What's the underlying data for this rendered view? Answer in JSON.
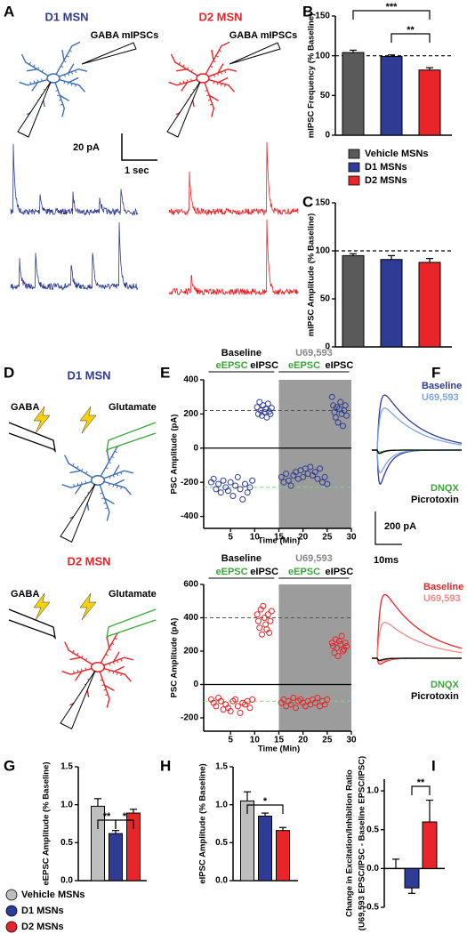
{
  "figure": {
    "labels": [
      "A",
      "B",
      "C",
      "D",
      "E",
      "F",
      "G",
      "H",
      "I"
    ],
    "panel_a": {
      "d1": "D1 MSN",
      "d2": "D2 MSN",
      "recording": "GABA mIPSCs",
      "scale_y": "20 pA",
      "scale_x": "1 sec"
    },
    "panel_d": {
      "d1": "D1 MSN",
      "d2": "D2 MSN",
      "gaba": "GABA",
      "glutamate": "Glutamate"
    },
    "panel_f": {
      "baseline": "Baseline",
      "drug": "U69,593",
      "dnqx": "DNQX",
      "picrotoxin": "Picrotoxin",
      "scale_y": "200 pA",
      "scale_x": "10ms"
    },
    "legend_square": [
      {
        "name": "Vehicle MSNs",
        "color": "#5a5a5a"
      },
      {
        "name": "D1 MSNs",
        "color": "#2e3c96"
      },
      {
        "name": "D2 MSNs",
        "color": "#e8262a"
      }
    ],
    "legend_circle": [
      {
        "name": "Vehicle MSNs",
        "color": "#bebebe"
      },
      {
        "name": "D1 MSNs",
        "color": "#2e3c96"
      },
      {
        "name": "D2 MSNs",
        "color": "#e8262a"
      }
    ]
  },
  "chart_data": [
    {
      "type": "bar",
      "ylabel": "mIPSC Frequency (% Baseline)",
      "values": [
        104,
        99,
        82
      ],
      "errors": [
        3,
        2,
        3
      ],
      "colors": [
        "#5a5a5a",
        "#2e3c96",
        "#e8262a"
      ],
      "ylim": [
        0,
        150
      ],
      "yticks": [
        0,
        50,
        100,
        150
      ],
      "ref_line": 100,
      "annotations": [
        "***",
        "**"
      ]
    },
    {
      "type": "bar",
      "ylabel": "mIPSC Amplitude (% Baseline)",
      "values": [
        95,
        91,
        88
      ],
      "errors": [
        2,
        4,
        4
      ],
      "colors": [
        "#5a5a5a",
        "#2e3c96",
        "#e8262a"
      ],
      "ylim": [
        0,
        150
      ],
      "yticks": [
        0,
        50,
        100,
        150
      ],
      "ref_line": 100,
      "annotations": []
    },
    {
      "type": "scatter",
      "ylabel": "PSC Amplitude (pA)",
      "xlabel": "Time (Min)",
      "phases": [
        "Baseline",
        "U69,593"
      ],
      "xlim": [
        0,
        30
      ],
      "xticks": [
        5,
        10,
        15,
        20,
        25,
        30
      ],
      "ylim": [
        -470,
        400
      ],
      "yticks": [
        -400,
        -200,
        0,
        200,
        400
      ],
      "shaded_x": [
        15,
        30
      ],
      "ref_lines": [
        {
          "value": 220,
          "color": "#555555"
        },
        {
          "value": -230,
          "color": "#7fd67f"
        }
      ],
      "series": [
        {
          "name": "eEPSC",
          "color": "#2e3c96",
          "x": [
            1,
            1.5,
            2,
            2.5,
            3,
            3.5,
            4,
            4.5,
            5,
            5.5,
            6,
            6.5,
            7,
            7.5,
            8,
            8.5,
            9,
            9.5
          ],
          "values": [
            -200,
            -180,
            -240,
            -210,
            -260,
            -190,
            -230,
            -250,
            -200,
            -280,
            -220,
            -170,
            -240,
            -300,
            -210,
            -260,
            -230,
            -190
          ]
        },
        {
          "name": "eIPSC",
          "color": "#2e3c96",
          "x": [
            10.5,
            10.75,
            11,
            11.25,
            11.5,
            11.75,
            12,
            12.25,
            12.5,
            12.75,
            13,
            13.25,
            13.5
          ],
          "values": [
            240,
            200,
            270,
            220,
            190,
            250,
            210,
            230,
            180,
            260,
            215,
            200,
            235
          ]
        },
        {
          "name": "eEPSC",
          "color": "#2e3c96",
          "x": [
            15.5,
            16,
            16.5,
            17,
            17.5,
            18,
            18.5,
            19,
            19.5,
            20,
            20.5,
            21,
            21.5,
            22,
            22.5,
            23,
            23.5,
            24,
            24.5,
            25
          ],
          "values": [
            -170,
            -200,
            -150,
            -190,
            -220,
            -160,
            -140,
            -180,
            -130,
            -170,
            -120,
            -150,
            -110,
            -160,
            -140,
            -180,
            -120,
            -200,
            -170,
            -210
          ]
        },
        {
          "name": "eIPSC",
          "color": "#2e3c96",
          "x": [
            26,
            26.25,
            26.5,
            26.75,
            27,
            27.25,
            27.5,
            27.75,
            28,
            28.25,
            28.5,
            28.75,
            29
          ],
          "values": [
            300,
            250,
            210,
            180,
            240,
            150,
            230,
            270,
            200,
            130,
            220,
            250,
            190
          ]
        }
      ]
    },
    {
      "type": "scatter",
      "ylabel": "PSC Amplitude (pA)",
      "xlabel": "Time (Min)",
      "phases": [
        "Baseline",
        "U69,593"
      ],
      "xlim": [
        0,
        30
      ],
      "xticks": [
        5,
        10,
        15,
        20,
        25,
        30
      ],
      "ylim": [
        -280,
        600
      ],
      "yticks": [
        -200,
        0,
        200,
        400,
        600
      ],
      "shaded_x": [
        15,
        30
      ],
      "ref_lines": [
        {
          "value": 400,
          "color": "#555555"
        },
        {
          "value": -100,
          "color": "#7fd67f"
        }
      ],
      "series": [
        {
          "name": "eEPSC",
          "color": "#e8262a",
          "x": [
            1,
            1.5,
            2,
            2.5,
            3,
            3.5,
            4,
            4.5,
            5,
            5.5,
            6,
            6.5,
            7,
            7.5,
            8,
            8.5,
            9,
            9.5
          ],
          "values": [
            -90,
            -110,
            -130,
            -80,
            -100,
            -150,
            -120,
            -140,
            -160,
            -100,
            -90,
            -130,
            -170,
            -110,
            -120,
            -100,
            -140,
            -90
          ]
        },
        {
          "name": "eIPSC",
          "color": "#e8262a",
          "x": [
            10.5,
            10.75,
            11,
            11.25,
            11.5,
            11.75,
            12,
            12.25,
            12.5,
            12.75,
            13,
            13.25,
            13.5
          ],
          "values": [
            420,
            380,
            340,
            450,
            300,
            470,
            400,
            360,
            330,
            420,
            310,
            380,
            440
          ]
        },
        {
          "name": "eEPSC",
          "color": "#e8262a",
          "x": [
            15.5,
            16,
            16.5,
            17,
            17.5,
            18,
            18.5,
            19,
            19.5,
            20,
            20.5,
            21,
            21.5,
            22,
            22.5,
            23,
            23.5,
            24,
            24.5,
            25
          ],
          "values": [
            -110,
            -90,
            -130,
            -100,
            -120,
            -80,
            -140,
            -100,
            -90,
            -110,
            -130,
            -100,
            -120,
            -90,
            -110,
            -80,
            -130,
            -100,
            -120,
            -90
          ]
        },
        {
          "name": "eIPSC",
          "color": "#e8262a",
          "x": [
            26,
            26.25,
            26.5,
            26.75,
            27,
            27.25,
            27.5,
            27.75,
            28,
            28.25,
            28.5,
            28.75,
            29
          ],
          "values": [
            250,
            230,
            190,
            270,
            220,
            170,
            260,
            240,
            290,
            200,
            210,
            250,
            230
          ]
        }
      ]
    },
    {
      "type": "bar",
      "ylabel": "eEPSC Amplitude (% Baseline)",
      "values": [
        0.98,
        0.62,
        0.89
      ],
      "errors": [
        0.1,
        0.04,
        0.05
      ],
      "colors": [
        "#bebebe",
        "#2e3c96",
        "#e8262a"
      ],
      "ylim": [
        0,
        1.5
      ],
      "yticks": [
        {
          "value": 0,
          "label": "0.0"
        },
        0.5,
        {
          "value": 1,
          "label": "1.0"
        },
        1.5
      ],
      "annotations": [
        "**",
        "*"
      ]
    },
    {
      "type": "bar",
      "ylabel": "eIPSC Amplitude (% Baseline)",
      "values": [
        1.05,
        0.85,
        0.66
      ],
      "errors": [
        0.12,
        0.04,
        0.04
      ],
      "colors": [
        "#bebebe",
        "#2e3c96",
        "#e8262a"
      ],
      "ylim": [
        0,
        1.5
      ],
      "yticks": [
        {
          "value": 0,
          "label": "0.0"
        },
        0.5,
        {
          "value": 1,
          "label": "1.0"
        },
        1.5
      ],
      "annotations": [
        "*"
      ]
    },
    {
      "type": "bar",
      "ylabel": [
        "Change in Excitation/Inhibition Ratio",
        "(U69,593 EPSC/IPSC - Baseline EPSC/IPSC)"
      ],
      "values": [
        0,
        -0.25,
        0.6
      ],
      "errors": [
        0.12,
        0.07,
        0.28
      ],
      "colors": [
        "#bebebe",
        "#2e3c96",
        "#e8262a"
      ],
      "ylim": [
        -0.5,
        1.15
      ],
      "yticks": [
        -0.5,
        {
          "value": 0,
          "label": "0.0"
        },
        0.5,
        {
          "value": 1,
          "label": "1.0"
        }
      ],
      "annotations": [
        "**"
      ]
    }
  ]
}
